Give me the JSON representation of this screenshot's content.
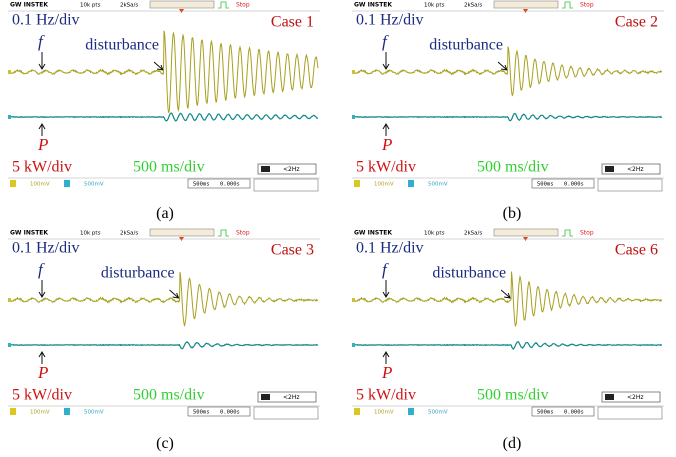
{
  "panels": [
    {
      "caption": "(a)",
      "header": {
        "brand": "GW INSTEK",
        "points": "10k pts",
        "rate": "2kSa/s",
        "status": "Stop"
      },
      "scale_f": "0.1 Hz/div",
      "case": "Case 1",
      "f_label": "f",
      "disturbance": "disturbance",
      "p_label": "P",
      "scale_p": "5 kW/div",
      "time": "500 ms/div",
      "footer": {
        "ch1": "100mV",
        "ch2": "500mV",
        "timebase": "500ms",
        "offset": "0.000s",
        "trigger": "<2Hz"
      }
    },
    {
      "caption": "(b)",
      "header": {
        "brand": "GW INSTEK",
        "points": "10k pts",
        "rate": "2kSa/s",
        "status": "Stop"
      },
      "scale_f": "0.1 Hz/div",
      "case": "Case 2",
      "f_label": "f",
      "disturbance": "disturbance",
      "p_label": "P",
      "scale_p": "5 kW/div",
      "time": "500 ms/div",
      "footer": {
        "ch1": "100mV",
        "ch2": "500mV",
        "timebase": "500ms",
        "offset": "0.000s",
        "trigger": "<2Hz"
      }
    },
    {
      "caption": "(c)",
      "header": {
        "brand": "GW INSTEK",
        "points": "10k pts",
        "rate": "2kSa/s",
        "status": "Stop"
      },
      "scale_f": "0.1 Hz/div",
      "case": "Case 3",
      "f_label": "f",
      "disturbance": "disturbance",
      "p_label": "P",
      "scale_p": "5 kW/div",
      "time": "500 ms/div",
      "footer": {
        "ch1": "100mV",
        "ch2": "500mV",
        "timebase": "500ms",
        "offset": "0.000s",
        "trigger": "<2Hz"
      }
    },
    {
      "caption": "(d)",
      "header": {
        "brand": "GW INSTEK",
        "points": "10k pts",
        "rate": "2kSa/s",
        "status": "Stop"
      },
      "scale_f": "0.1 Hz/div",
      "case": "Case 6",
      "f_label": "f",
      "disturbance": "disturbance",
      "p_label": "P",
      "scale_p": "5 kW/div",
      "time": "500 ms/div",
      "footer": {
        "ch1": "100mV",
        "ch2": "500mV",
        "timebase": "500ms",
        "offset": "0.000s",
        "trigger": "<2Hz"
      }
    }
  ]
}
